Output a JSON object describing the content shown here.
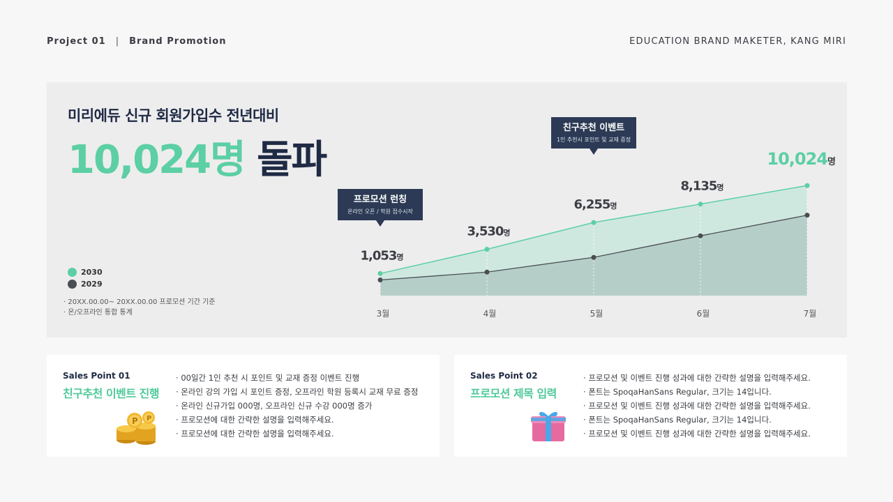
{
  "header": {
    "project": "Project 01",
    "separator": "|",
    "section": "Brand Promotion",
    "author": "EDUCATION BRAND MAKETER, KANG MIRI"
  },
  "headline": {
    "subtitle": "미리에듀 신규 회원가입수 전년대비",
    "big_number": "10,024명",
    "big_text": "돌파"
  },
  "legend": [
    {
      "label": "2030",
      "color": "#5ccfa4"
    },
    {
      "label": "2029",
      "color": "#4a4d52"
    }
  ],
  "notes": [
    "· 20XX.00.00~ 20XX.00.00 프로모션 기간 기준",
    "· 온/오프라인 통합 통계"
  ],
  "chart_data": {
    "type": "area",
    "categories": [
      "3월",
      "4월",
      "5월",
      "6월",
      "7월"
    ],
    "series": [
      {
        "name": "2030",
        "values": [
          1053,
          3530,
          6255,
          8135,
          10024
        ],
        "color": "#5ccfa4",
        "labels": [
          "1,053",
          "3,530",
          "6,255",
          "8,135",
          "10,024"
        ],
        "unit": "명"
      },
      {
        "name": "2029",
        "values": [
          400,
          1200,
          2700,
          4900,
          7000
        ],
        "color": "#4a4d52"
      }
    ],
    "ylim": [
      -1200,
      17000
    ],
    "callouts": [
      {
        "category": "3월",
        "title": "프로모션 런칭",
        "desc": "온라인 오픈 / 학원 접수시작"
      },
      {
        "category": "5월",
        "title": "친구추천 이벤트",
        "desc": "1인 추천시 포인트 및 교재 증정"
      }
    ],
    "accent": "#5ccfa4",
    "callout_bg": "#2c3a55"
  },
  "cards": [
    {
      "point": "Sales Point 01",
      "title": "친구추천 이벤트 진행",
      "icon": "coins-icon",
      "items": [
        "00일간 1인 추천 시 포인트 및 교재 증정 이벤트 진행",
        "온라인 강의 가입 시 포인트 증정, 오프라인 학원 등록시 교재 무료 증정",
        "온라인 신규가입 000명, 오프라인 신규 수강 000명 증가",
        "프로모션에 대한 간략한 설명을 입력해주세요.",
        "프로모션에 대한 간략한 설명을 입력해주세요."
      ]
    },
    {
      "point": "Sales Point 02",
      "title": "프로모션 제목 입력",
      "icon": "gift-icon",
      "items": [
        "프로모션 및 이벤트 진행 성과에 대한 간략한 설명을 입력해주세요.",
        "폰트는 SpoqaHanSans Regular, 크기는 14입니다.",
        "프로모션 및 이벤트 진행 성과에 대한 간략한 설명을 입력해주세요.",
        "폰트는 SpoqaHanSans Regular, 크기는 14입니다.",
        "프로모션 및 이벤트 진행 성과에 대한 간략한 설명을 입력해주세요."
      ]
    }
  ]
}
